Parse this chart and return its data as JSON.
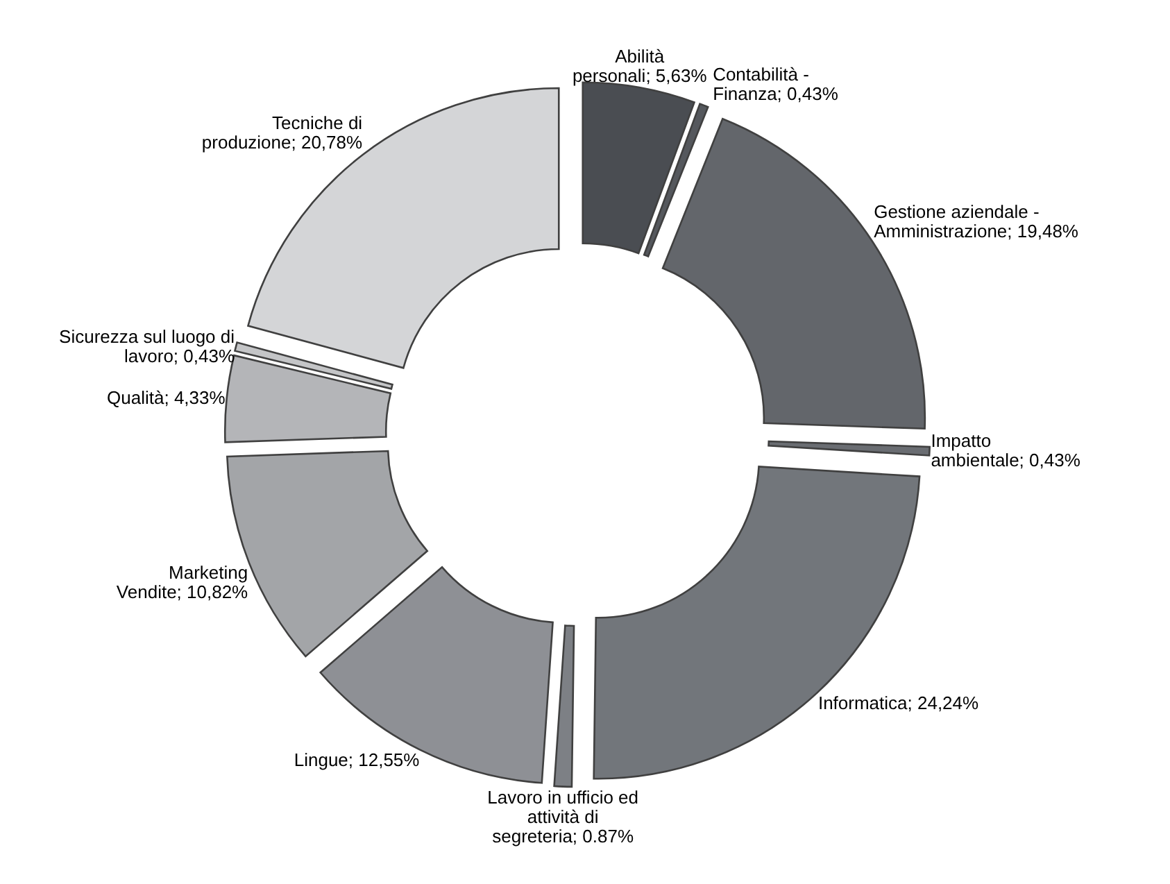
{
  "chart_data": {
    "type": "donut",
    "categories": [
      "Abilità personali",
      "Contabilità - Finanza",
      "Gestione aziendale - Amministrazione",
      "Impatto ambientale",
      "Informatica",
      "Lavoro in ufficio ed attività di segreteria",
      "Lingue",
      "Marketing Vendite",
      "Qualità",
      "Sicurezza sul luogo di lavoro",
      "Tecniche di produzione"
    ],
    "values": [
      5.63,
      0.43,
      19.48,
      0.43,
      24.24,
      0.87,
      12.55,
      10.82,
      4.33,
      0.43,
      20.78
    ],
    "value_labels": [
      "5,63%",
      "0,43%",
      "19,48%",
      "0,43%",
      "24,24%",
      "0.87%",
      "12,55%",
      "10,82%",
      "4,33%",
      "0,43%",
      "20,78%"
    ],
    "colors": [
      "#4a4d52",
      "#55585d",
      "#63666b",
      "#6a6d72",
      "#72767b",
      "#7d8085",
      "#8e9095",
      "#a3a5a8",
      "#b4b5b8",
      "#c4c5c7",
      "#d4d5d7"
    ]
  }
}
